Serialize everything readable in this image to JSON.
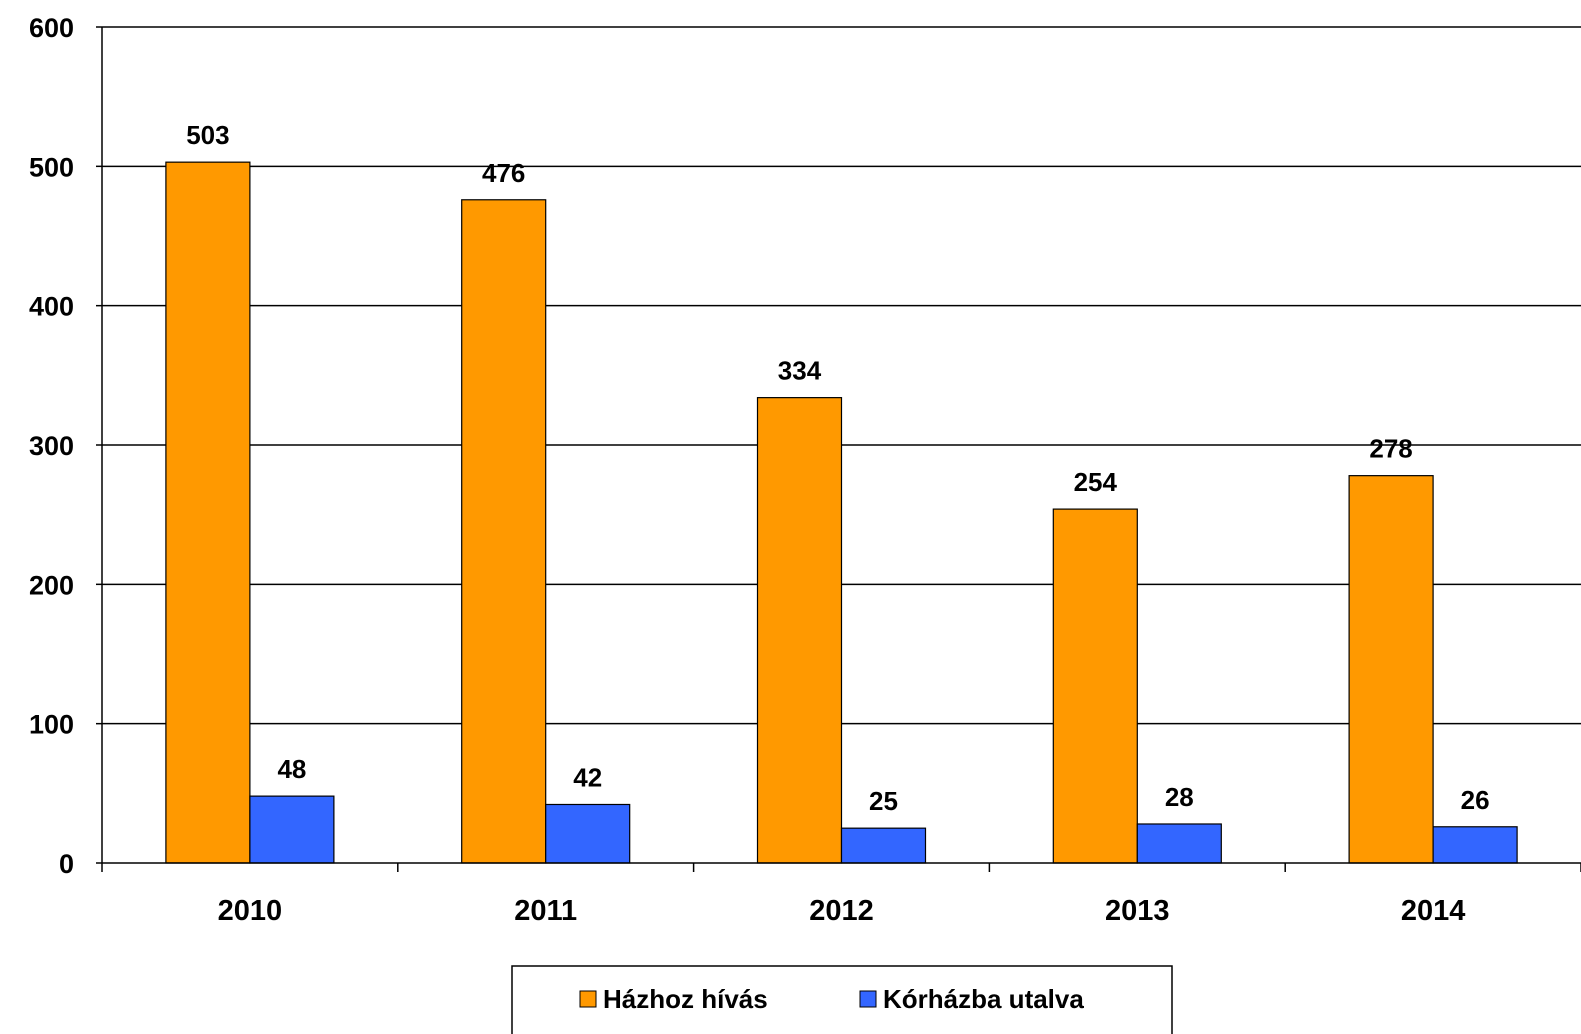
{
  "chart_data": {
    "type": "bar",
    "categories": [
      "2010",
      "2011",
      "2012",
      "2013",
      "2014"
    ],
    "series": [
      {
        "name": "Házhoz hívás",
        "color": "#FF9900",
        "values": [
          503,
          476,
          334,
          254,
          278
        ]
      },
      {
        "name": "Kórházba utalva",
        "color": "#3366FF",
        "values": [
          48,
          42,
          25,
          28,
          26
        ]
      }
    ],
    "ylim": [
      0,
      600
    ],
    "yticks": [
      "0",
      "100",
      "200",
      "300",
      "400",
      "500",
      "600"
    ],
    "grid": true,
    "legend_position": "bottom"
  }
}
